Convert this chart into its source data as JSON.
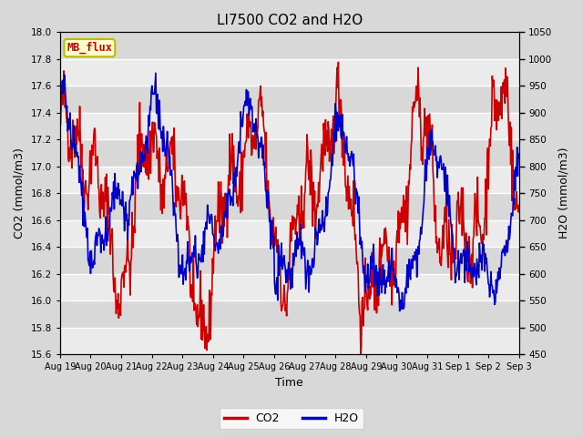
{
  "title": "LI7500 CO2 and H2O",
  "xlabel": "Time",
  "ylabel_left": "CO2 (mmol/m3)",
  "ylabel_right": "H2O (mmol/m3)",
  "co2_color": "#cc0000",
  "h2o_color": "#0000cc",
  "background_color": "#d8d8d8",
  "plot_bg_color": "#d8d8d8",
  "ylim_left": [
    15.6,
    18.0
  ],
  "ylim_right": [
    450,
    1050
  ],
  "yticks_left": [
    15.6,
    15.8,
    16.0,
    16.2,
    16.4,
    16.6,
    16.8,
    17.0,
    17.2,
    17.4,
    17.6,
    17.8,
    18.0
  ],
  "yticks_right": [
    450,
    500,
    550,
    600,
    650,
    700,
    750,
    800,
    850,
    900,
    950,
    1000,
    1050
  ],
  "xtick_labels": [
    "Aug 19",
    "Aug 20",
    "Aug 21",
    "Aug 22",
    "Aug 23",
    "Aug 24",
    "Aug 25",
    "Aug 26",
    "Aug 27",
    "Aug 28",
    "Aug 29",
    "Aug 30",
    "Aug 31",
    "Sep 1",
    "Sep 2",
    "Sep 3"
  ],
  "label_box_text": "MB_flux",
  "label_box_facecolor": "#ffffcc",
  "label_box_edgecolor": "#bbbb00",
  "label_box_textcolor": "#cc0000",
  "legend_co2": "CO2",
  "legend_h2o": "H2O",
  "line_width": 1.2,
  "n_days": 15,
  "seed": 42
}
